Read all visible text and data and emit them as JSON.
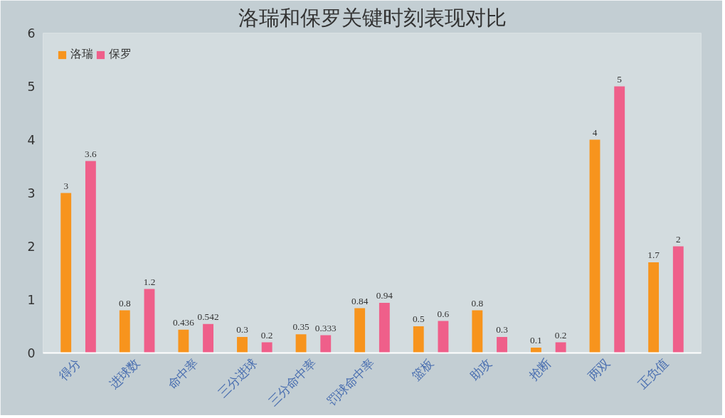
{
  "chart_data": {
    "type": "bar",
    "title": "洛瑞和保罗关键时刻表现对比",
    "categories": [
      "得分",
      "进球数",
      "命中率",
      "三分进球",
      "三分命中率",
      "罚球命中率",
      "篮板",
      "助攻",
      "抢断",
      "两双",
      "正负值"
    ],
    "series": [
      {
        "name": "洛瑞",
        "color": "#f7941d",
        "values": [
          3,
          0.8,
          0.436,
          0.3,
          0.35,
          0.84,
          0.5,
          0.8,
          0.1,
          4,
          1.7
        ]
      },
      {
        "name": "保罗",
        "color": "#ef5f8a",
        "values": [
          3.6,
          1.2,
          0.542,
          0.2,
          0.333,
          0.94,
          0.6,
          0.3,
          0.2,
          5,
          2
        ]
      }
    ],
    "ylim": [
      0,
      6
    ],
    "yticks": [
      0,
      1,
      2,
      3,
      4,
      5,
      6
    ],
    "grid": false,
    "legend": "top left",
    "data_labels": true
  }
}
